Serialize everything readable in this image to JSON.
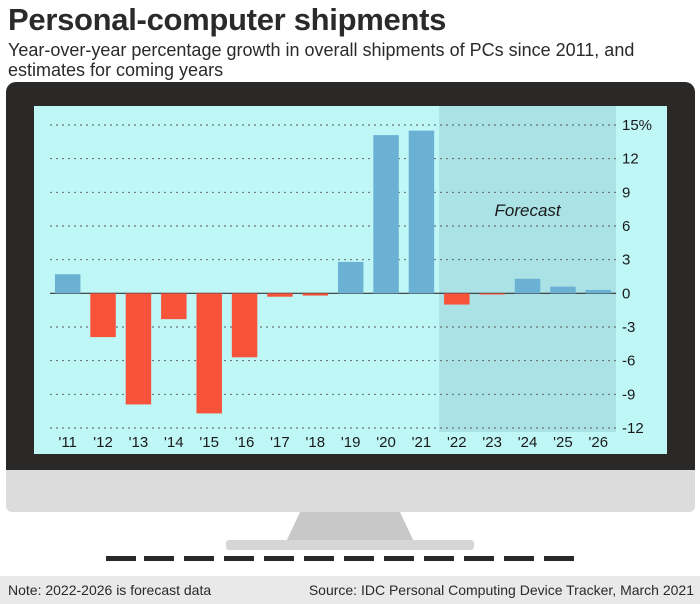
{
  "title": "Personal-computer shipments",
  "subtitle": "Year-over-year percentage growth in overall shipments of PCs since 2011, and estimates for coming years",
  "note": "Note:  2022-2026 is forecast data",
  "source": "Source: IDC Personal Computing Device Tracker, March 2021",
  "colors": {
    "positive": "#6ab1d4",
    "negative": "#f7533b",
    "screen": "#bff7f6",
    "forecast_shade": "#abe2e5",
    "bezel": "#2b2828",
    "stand": "#dcdcdc"
  },
  "chart_data": {
    "type": "bar",
    "categories": [
      "'11",
      "'12",
      "'13",
      "'14",
      "'15",
      "'16",
      "'17",
      "'18",
      "'19",
      "'20",
      "'21",
      "'22",
      "'23",
      "'24",
      "'25",
      "'26"
    ],
    "values": [
      1.7,
      -3.9,
      -9.9,
      -2.3,
      -10.7,
      -5.7,
      -0.3,
      -0.2,
      2.8,
      14.1,
      14.5,
      -1.0,
      -0.1,
      1.3,
      0.6,
      0.3
    ],
    "ylim": [
      -12,
      15
    ],
    "yticks": [
      15,
      12,
      9,
      6,
      3,
      0,
      -3,
      -6,
      -9,
      -12
    ],
    "ytick_labels": [
      "15%",
      "12",
      "9",
      "6",
      "3",
      "0",
      "-3",
      "-6",
      "-9",
      "-12"
    ],
    "forecast_from": "'22",
    "forecast_label": "Forecast",
    "grid": true,
    "xlabel": "",
    "ylabel": ""
  }
}
